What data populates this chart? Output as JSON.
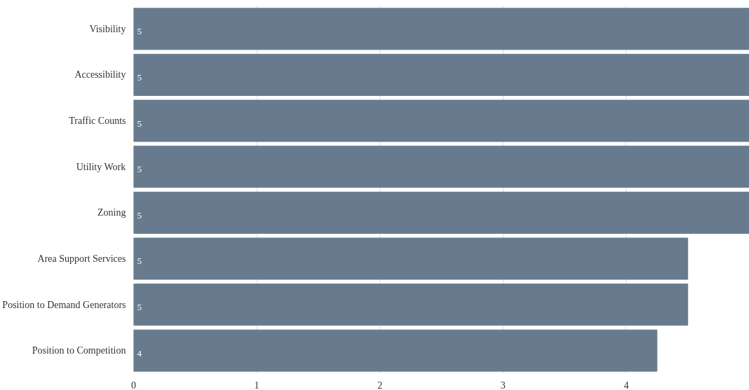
{
  "chart_data": {
    "type": "bar",
    "orientation": "horizontal",
    "categories": [
      "Visibility",
      "Accessibility",
      "Traffic Counts",
      "Utility Work",
      "Zoning",
      "Area Support Services",
      "Position to Demand Generators",
      "Position to Competition"
    ],
    "values": [
      5,
      5,
      5,
      5,
      5,
      4.5,
      4.5,
      4.25
    ],
    "value_labels": [
      "5",
      "5",
      "5",
      "5",
      "5",
      "5",
      "5",
      "4"
    ],
    "color": "#687b8e",
    "xlim": [
      0,
      5
    ],
    "xticks": [
      0,
      1,
      2,
      3,
      4
    ],
    "grid": "x"
  }
}
